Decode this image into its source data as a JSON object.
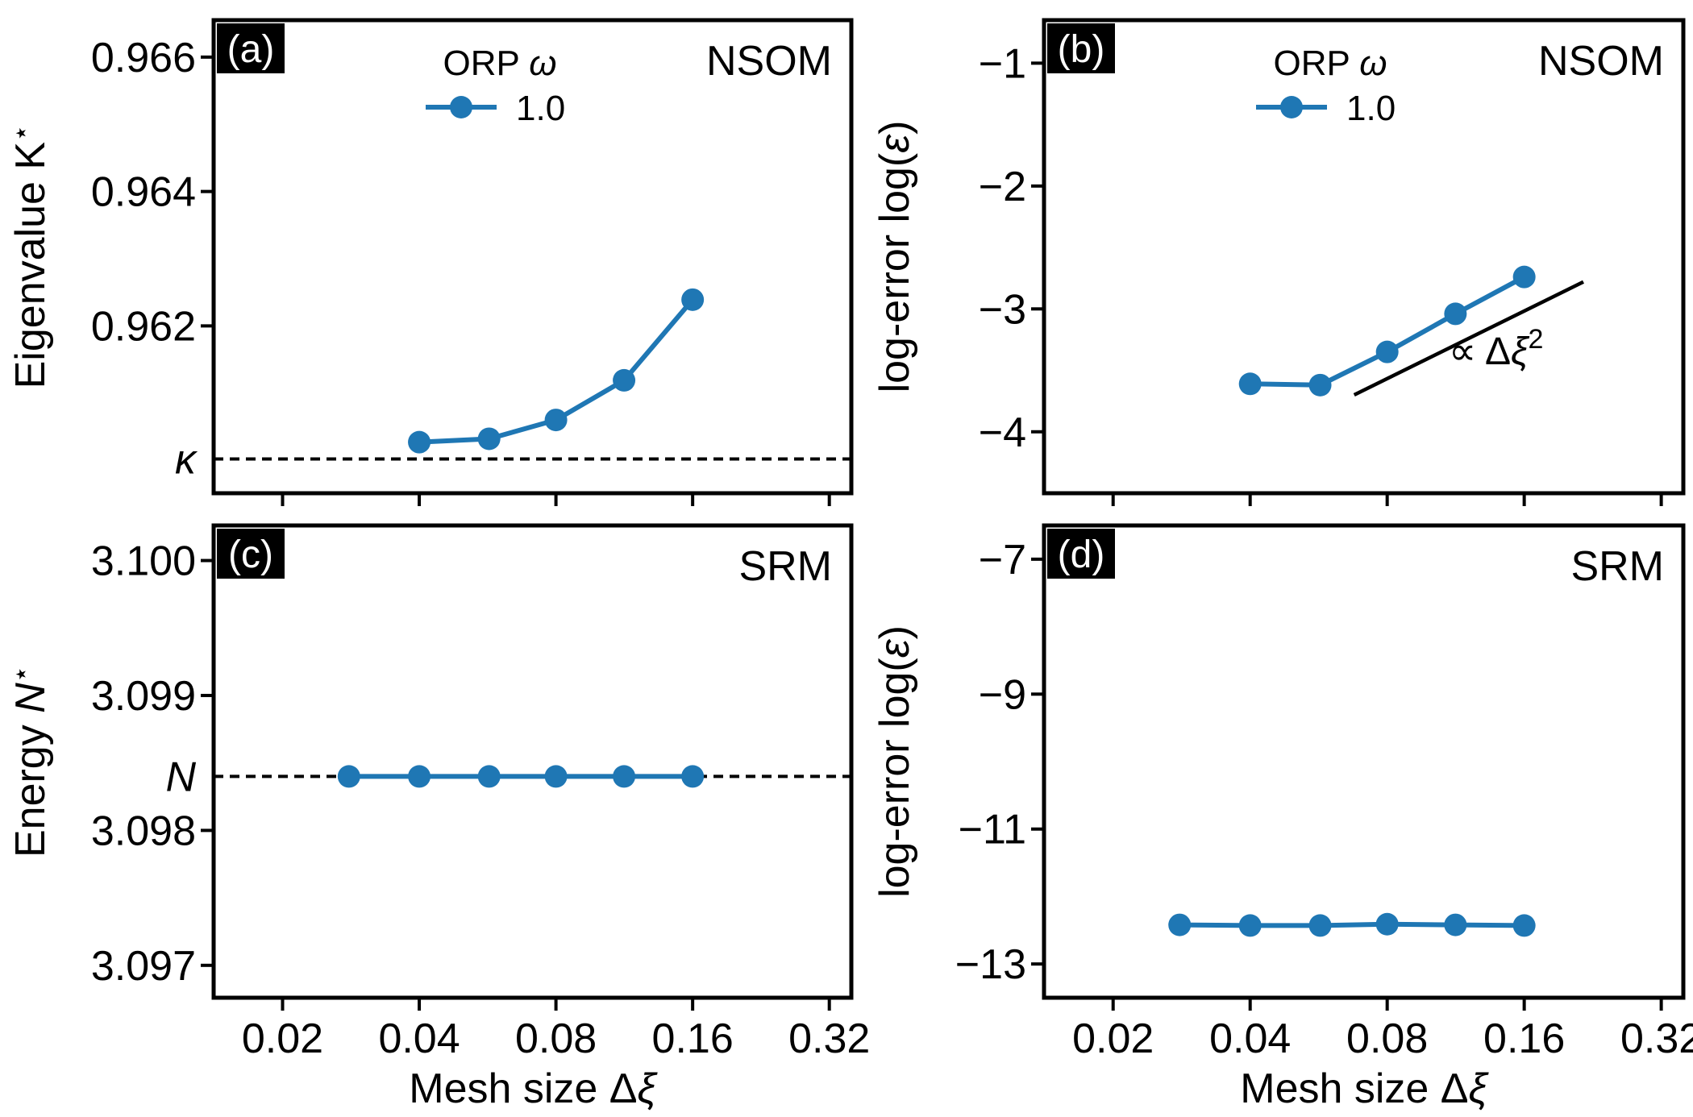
{
  "x_tick_labels": [
    "0.02",
    "0.04",
    "0.08",
    "0.16",
    "0.32"
  ],
  "colors": {
    "series": "#1f77b4",
    "axes": "#000000",
    "tag_bg": "#000000",
    "tag_text": "#ffffff"
  },
  "chart_data": [
    {
      "type": "line",
      "panel": "(a)",
      "corner_label": "NSOM",
      "xlabel": "",
      "ylabel": "Eigenvalue K⋆",
      "xscale": "log2",
      "xlim": [
        0.0141,
        0.3578
      ],
      "ylim": [
        0.95951,
        0.96655
      ],
      "yticks": [
        0.962,
        0.964,
        0.966
      ],
      "ytick_labels": [
        "0.962",
        "0.964",
        "0.966"
      ],
      "reference_line": {
        "label": "κ",
        "y": 0.96002,
        "style": "dashed"
      },
      "legend": {
        "title": "ORP ω",
        "entries": [
          "1.0"
        ],
        "placement": "top-center"
      },
      "series": [
        {
          "name": "1.0",
          "x": [
            0.04,
            0.057,
            0.08,
            0.113,
            0.16
          ],
          "y": [
            0.96027,
            0.96032,
            0.9606,
            0.96119,
            0.96239
          ]
        }
      ]
    },
    {
      "type": "line",
      "panel": "(b)",
      "corner_label": "NSOM",
      "xlabel": "",
      "ylabel": "log-error log(ε)",
      "xscale": "log2",
      "xlim": [
        0.0141,
        0.3578
      ],
      "ylim": [
        -4.5,
        -0.65
      ],
      "yticks": [
        -4,
        -3,
        -2,
        -1
      ],
      "ytick_labels": [
        "−4",
        "−3",
        "−2",
        "−1"
      ],
      "legend": {
        "title": "ORP ω",
        "entries": [
          "1.0"
        ],
        "placement": "top-center"
      },
      "annotation": {
        "text": "∝ Δξ²",
        "line_x": [
          0.0677,
          0.2158
        ],
        "line_y": [
          -3.7,
          -2.78
        ]
      },
      "series": [
        {
          "name": "1.0",
          "x": [
            0.04,
            0.057,
            0.08,
            0.113,
            0.16
          ],
          "y": [
            -3.61,
            -3.62,
            -3.35,
            -3.04,
            -2.74
          ]
        }
      ]
    },
    {
      "type": "line",
      "panel": "(c)",
      "corner_label": "SRM",
      "xlabel": "Mesh size Δξ",
      "ylabel": "Energy N⋆",
      "xscale": "log2",
      "xlim": [
        0.0141,
        0.3578
      ],
      "ylim": [
        3.09676,
        3.10026
      ],
      "yticks": [
        3.097,
        3.098,
        3.099,
        3.1
      ],
      "ytick_labels": [
        "3.097",
        "3.098",
        "3.099",
        "3.100"
      ],
      "reference_line": {
        "label": "N",
        "y": 3.0984,
        "style": "dashed"
      },
      "series": [
        {
          "x": [
            0.028,
            0.04,
            0.057,
            0.08,
            0.113,
            0.16
          ],
          "y": [
            3.0984,
            3.0984,
            3.0984,
            3.0984,
            3.0984,
            3.0984
          ]
        }
      ]
    },
    {
      "type": "line",
      "panel": "(d)",
      "corner_label": "SRM",
      "xlabel": "Mesh size Δξ",
      "ylabel": "log-error log(ε)",
      "xscale": "log2",
      "xlim": [
        0.0141,
        0.3578
      ],
      "ylim": [
        -13.5,
        -6.5
      ],
      "yticks": [
        -13,
        -11,
        -9,
        -7
      ],
      "ytick_labels": [
        "−13",
        "−11",
        "−9",
        "−7"
      ],
      "series": [
        {
          "x": [
            0.028,
            0.04,
            0.057,
            0.08,
            0.113,
            0.16
          ],
          "y": [
            -12.42,
            -12.43,
            -12.43,
            -12.41,
            -12.42,
            -12.43
          ]
        }
      ]
    }
  ]
}
